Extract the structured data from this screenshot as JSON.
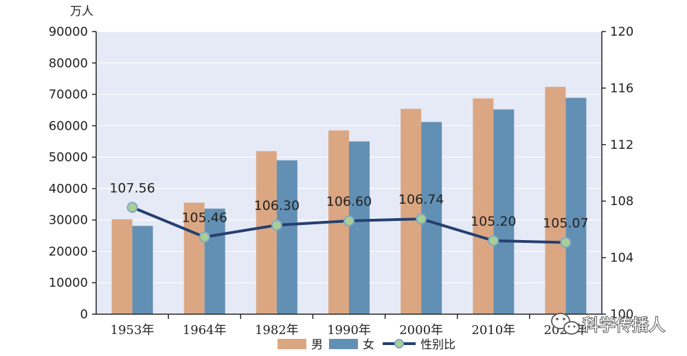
{
  "chart_data": {
    "type": "bar",
    "categories": [
      "1953年",
      "1964年",
      "1982年",
      "1990年",
      "2000年",
      "2010年",
      "2020年"
    ],
    "series": [
      {
        "name": "男",
        "type": "bar",
        "axis": "left",
        "color": "#dba783",
        "values": [
          30200,
          35500,
          51900,
          58500,
          65400,
          68700,
          72400
        ]
      },
      {
        "name": "女",
        "type": "bar",
        "axis": "left",
        "color": "#6290b4",
        "values": [
          28100,
          33600,
          49000,
          55000,
          61200,
          65200,
          68900
        ]
      },
      {
        "name": "性别比",
        "type": "line",
        "axis": "right",
        "color": "#253f70",
        "marker_color": "#a9cf94",
        "values": [
          107.56,
          105.46,
          106.3,
          106.6,
          106.74,
          105.2,
          105.07
        ],
        "labels": [
          "107.56",
          "105.46",
          "106.30",
          "106.60",
          "106.74",
          "105.20",
          "105.07"
        ]
      }
    ],
    "ylabel": "万人",
    "ylim": [
      0,
      90000
    ],
    "y_ticks": [
      "0",
      "10000",
      "20000",
      "30000",
      "40000",
      "50000",
      "60000",
      "70000",
      "80000",
      "90000"
    ],
    "y2lim": [
      100,
      120
    ],
    "y2_ticks": [
      "100",
      "104",
      "108",
      "112",
      "116",
      "120"
    ],
    "legend": [
      "男",
      "女",
      "性别比"
    ],
    "legend_position": "bottom",
    "grid": true,
    "plot_background": "#e6eaf6"
  },
  "watermark": {
    "icon": "wechat-icon",
    "text": "科学传播人"
  }
}
